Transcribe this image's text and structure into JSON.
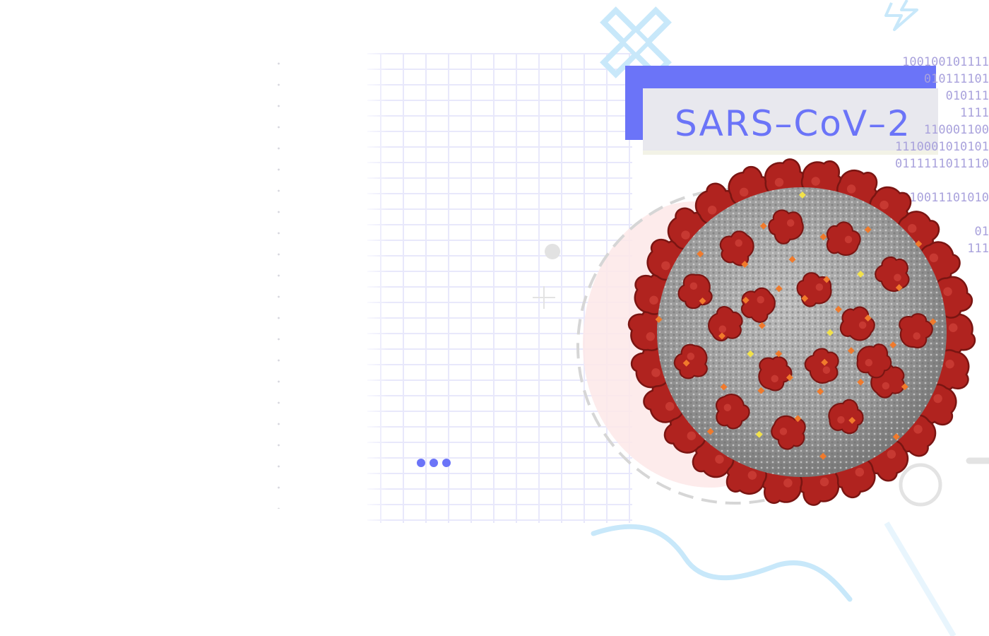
{
  "title": {
    "text": "SARS–CoV–2"
  },
  "binary": {
    "lines": [
      "100100101111",
      "    010111101",
      "       010111",
      "         1111",
      "    110001100",
      "1110001010101",
      "0111111011110",
      "",
      "0010011101010",
      "",
      "          01",
      "         111"
    ]
  },
  "colors": {
    "accent": "#6b74f8",
    "card_light": "#e8e8ee",
    "grid": "#e8e8fb",
    "binary": "#a9a2dc",
    "virus_spike": "#b0231f",
    "virus_body": "#9a9a9a",
    "decor_blue": "#c8e8fa",
    "blob": "#fde7e8"
  },
  "icons": {
    "cross": "cross-icon",
    "lightning": "lightning-icon",
    "plus": "plus-icon",
    "ellipsis": "more-dots-icon",
    "virus": "coronavirus-icon"
  }
}
